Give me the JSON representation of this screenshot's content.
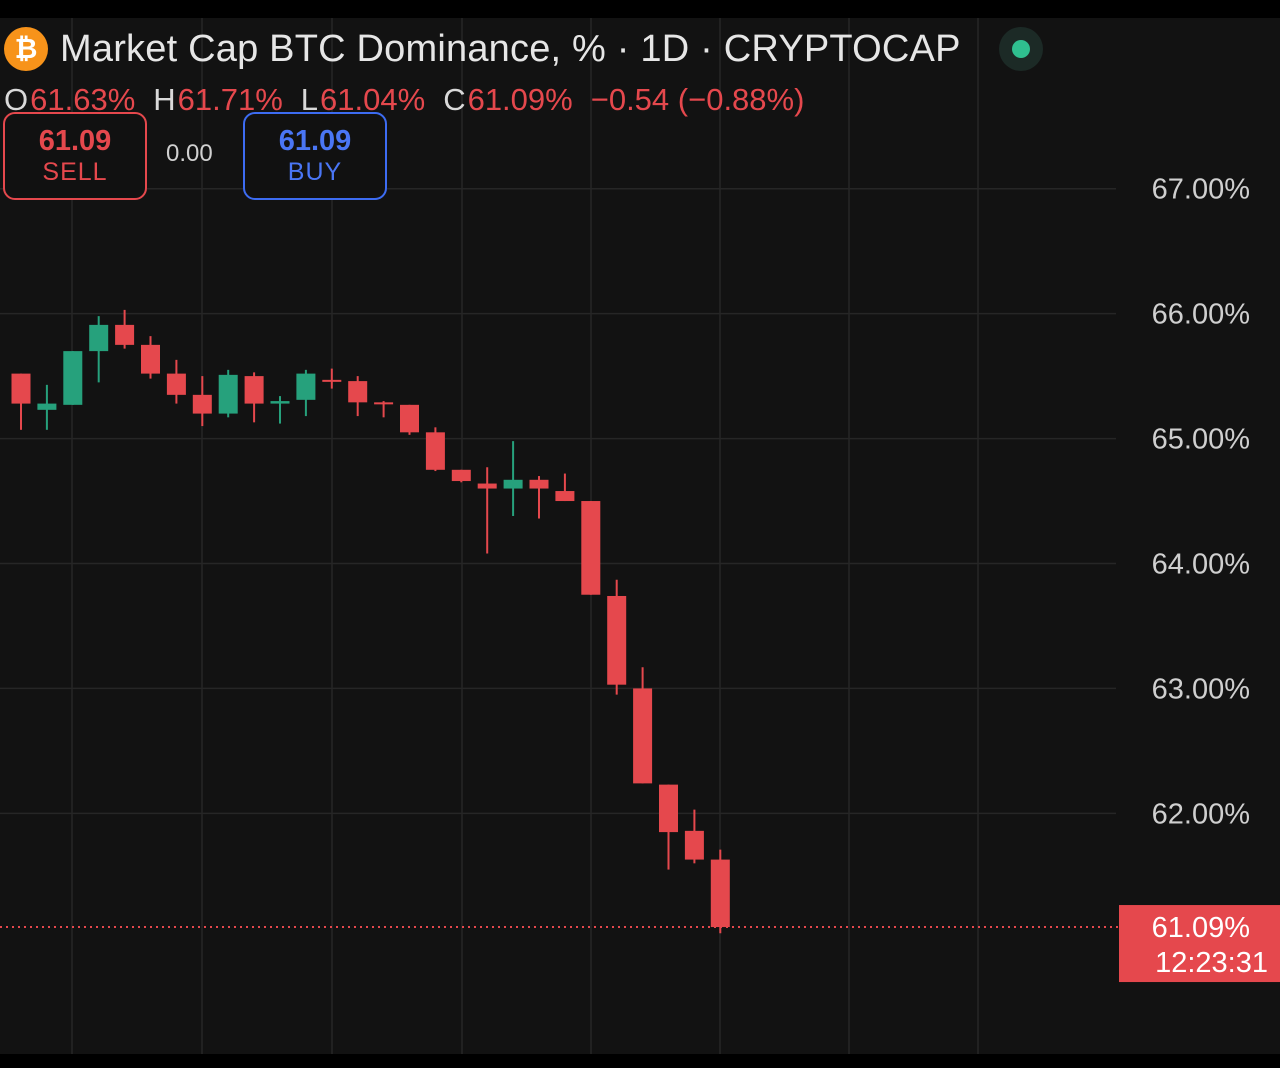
{
  "header": {
    "coin_symbol": "₿",
    "title": "Market Cap BTC Dominance, % · 1D · CRYPTOCAP",
    "status": "live-dot-icon"
  },
  "ohlc": {
    "o_label": "O",
    "o_value": "61.63%",
    "h_label": "H",
    "h_value": "61.71%",
    "l_label": "L",
    "l_value": "61.04%",
    "c_label": "C",
    "c_value": "61.09%",
    "change": "−0.54 (−0.88%)"
  },
  "trade": {
    "sell_price": "61.09",
    "sell_label": "SELL",
    "spread": "0.00",
    "buy_price": "61.09",
    "buy_label": "BUY"
  },
  "colors": {
    "up": "#26a17c",
    "down": "#e5484d",
    "grid": "#262626",
    "axis_text": "#cfcfcf",
    "background": "#121212"
  },
  "chart_data": {
    "type": "candlestick",
    "ylim": [
      60.45,
      67.55
    ],
    "y_ticks": [
      "67.00%",
      "66.00%",
      "65.00%",
      "64.00%",
      "63.00%",
      "62.00%"
    ],
    "y_tick_values": [
      67,
      66,
      65,
      64,
      63,
      62
    ],
    "last_price_label": "61.09%",
    "countdown": "12:23:31",
    "last_price": 61.09,
    "candles": [
      {
        "o": 65.52,
        "h": 65.52,
        "l": 65.07,
        "c": 65.28
      },
      {
        "o": 65.23,
        "h": 65.43,
        "l": 65.07,
        "c": 65.28
      },
      {
        "o": 65.27,
        "h": 65.7,
        "l": 65.27,
        "c": 65.7
      },
      {
        "o": 65.7,
        "h": 65.98,
        "l": 65.45,
        "c": 65.91
      },
      {
        "o": 65.91,
        "h": 66.03,
        "l": 65.72,
        "c": 65.75
      },
      {
        "o": 65.75,
        "h": 65.82,
        "l": 65.48,
        "c": 65.52
      },
      {
        "o": 65.52,
        "h": 65.63,
        "l": 65.28,
        "c": 65.35
      },
      {
        "o": 65.35,
        "h": 65.5,
        "l": 65.1,
        "c": 65.2
      },
      {
        "o": 65.2,
        "h": 65.55,
        "l": 65.17,
        "c": 65.51
      },
      {
        "o": 65.5,
        "h": 65.53,
        "l": 65.13,
        "c": 65.28
      },
      {
        "o": 65.28,
        "h": 65.34,
        "l": 65.12,
        "c": 65.3
      },
      {
        "o": 65.31,
        "h": 65.55,
        "l": 65.18,
        "c": 65.52
      },
      {
        "o": 65.47,
        "h": 65.56,
        "l": 65.4,
        "c": 65.46
      },
      {
        "o": 65.46,
        "h": 65.5,
        "l": 65.18,
        "c": 65.29
      },
      {
        "o": 65.29,
        "h": 65.3,
        "l": 65.17,
        "c": 65.28
      },
      {
        "o": 65.27,
        "h": 65.27,
        "l": 65.03,
        "c": 65.05
      },
      {
        "o": 65.05,
        "h": 65.09,
        "l": 64.74,
        "c": 64.75
      },
      {
        "o": 64.75,
        "h": 64.75,
        "l": 64.65,
        "c": 64.66
      },
      {
        "o": 64.64,
        "h": 64.77,
        "l": 64.08,
        "c": 64.6
      },
      {
        "o": 64.6,
        "h": 64.98,
        "l": 64.38,
        "c": 64.67
      },
      {
        "o": 64.67,
        "h": 64.7,
        "l": 64.36,
        "c": 64.6
      },
      {
        "o": 64.58,
        "h": 64.72,
        "l": 64.5,
        "c": 64.5
      },
      {
        "o": 64.5,
        "h": 64.5,
        "l": 63.75,
        "c": 63.75
      },
      {
        "o": 63.74,
        "h": 63.87,
        "l": 62.95,
        "c": 63.03
      },
      {
        "o": 63.0,
        "h": 63.17,
        "l": 62.24,
        "c": 62.24
      },
      {
        "o": 62.23,
        "h": 62.23,
        "l": 61.55,
        "c": 61.85
      },
      {
        "o": 61.86,
        "h": 62.03,
        "l": 61.6,
        "c": 61.63
      },
      {
        "o": 61.63,
        "h": 61.71,
        "l": 61.04,
        "c": 61.09
      }
    ]
  }
}
